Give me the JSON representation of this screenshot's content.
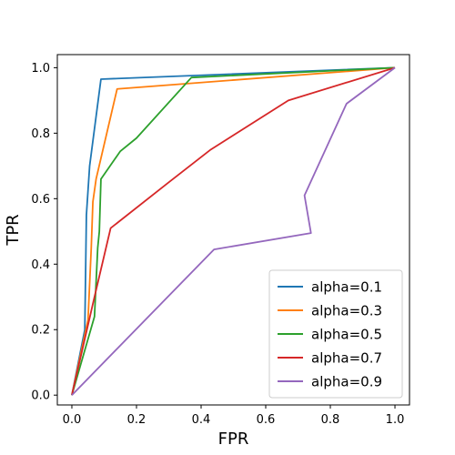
{
  "chart_data": {
    "type": "line",
    "title": "",
    "xlabel": "FPR",
    "ylabel": "TPR",
    "xlim": [
      -0.045,
      1.045
    ],
    "ylim": [
      -0.03,
      1.04
    ],
    "xticks": [
      0.0,
      0.2,
      0.4,
      0.6,
      0.8,
      1.0
    ],
    "yticks": [
      0.0,
      0.2,
      0.4,
      0.6,
      0.8,
      1.0
    ],
    "xtick_labels": [
      "0.0",
      "0.2",
      "0.4",
      "0.6",
      "0.8",
      "1.0"
    ],
    "ytick_labels": [
      "0.0",
      "0.2",
      "0.4",
      "0.6",
      "0.8",
      "1.0"
    ],
    "grid": false,
    "legend_position": "lower-right",
    "series": [
      {
        "name": "alpha=0.1",
        "color": "#1f77b4",
        "x": [
          0.0,
          0.04,
          0.045,
          0.055,
          0.09,
          1.0
        ],
        "y": [
          0.0,
          0.2,
          0.55,
          0.7,
          0.965,
          1.0
        ]
      },
      {
        "name": "alpha=0.3",
        "color": "#ff7f0e",
        "x": [
          0.0,
          0.05,
          0.06,
          0.065,
          0.075,
          0.14,
          1.0
        ],
        "y": [
          0.0,
          0.23,
          0.45,
          0.59,
          0.66,
          0.935,
          1.0
        ]
      },
      {
        "name": "alpha=0.5",
        "color": "#2ca02c",
        "x": [
          0.0,
          0.07,
          0.08,
          0.085,
          0.09,
          0.15,
          0.2,
          0.37,
          1.0
        ],
        "y": [
          0.0,
          0.24,
          0.45,
          0.5,
          0.66,
          0.745,
          0.785,
          0.97,
          1.0
        ]
      },
      {
        "name": "alpha=0.7",
        "color": "#d62728",
        "x": [
          0.0,
          0.07,
          0.12,
          0.3,
          0.43,
          0.67,
          1.0
        ],
        "y": [
          0.0,
          0.3,
          0.51,
          0.65,
          0.75,
          0.9,
          1.0
        ]
      },
      {
        "name": "alpha=0.9",
        "color": "#9467bd",
        "x": [
          0.0,
          0.44,
          0.74,
          0.72,
          0.85,
          1.0
        ],
        "y": [
          0.0,
          0.445,
          0.495,
          0.61,
          0.89,
          1.0
        ]
      }
    ]
  }
}
